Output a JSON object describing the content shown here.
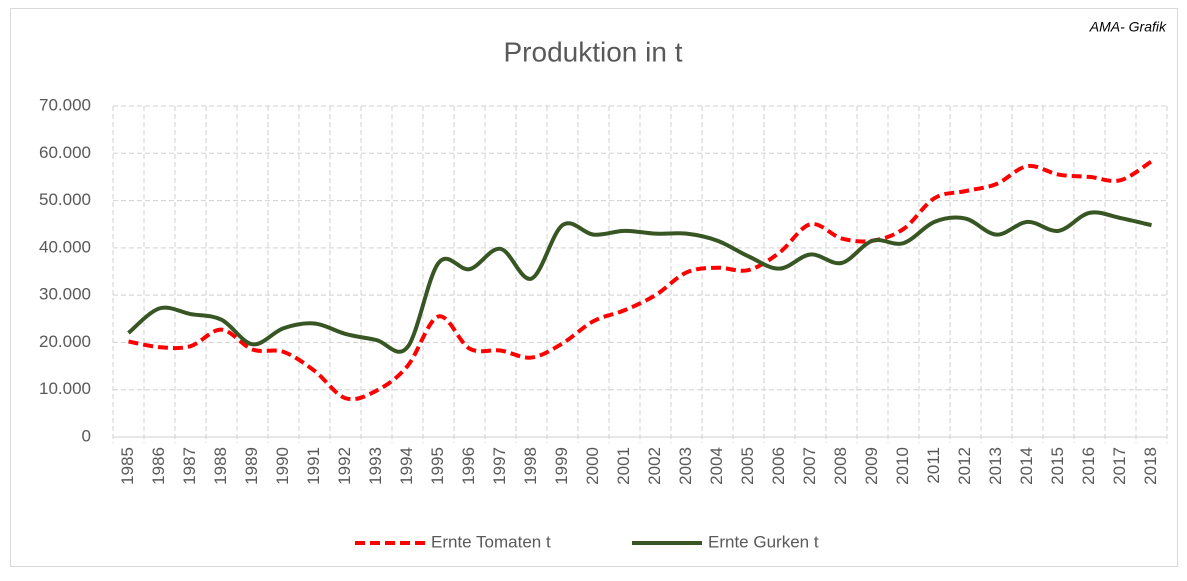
{
  "chart_data": {
    "type": "line",
    "title": "Produktion in t",
    "annotation": "AMA- Grafik",
    "categories": [
      "1985",
      "1986",
      "1987",
      "1988",
      "1989",
      "1990",
      "1991",
      "1992",
      "1993",
      "1994",
      "1995",
      "1996",
      "1997",
      "1998",
      "1999",
      "2000",
      "2001",
      "2002",
      "2003",
      "2004",
      "2005",
      "2006",
      "2007",
      "2008",
      "2009",
      "2010",
      "2011",
      "2012",
      "2013",
      "2014",
      "2015",
      "2016",
      "2017",
      "2018"
    ],
    "series": [
      {
        "name": "Ernte Tomaten  t",
        "color": "#ff0000",
        "dash": true,
        "values": [
          20200,
          19000,
          19200,
          22700,
          18500,
          18000,
          14000,
          8200,
          9800,
          15000,
          25500,
          18700,
          18300,
          16800,
          19800,
          24500,
          26800,
          30000,
          34800,
          35800,
          35300,
          39000,
          45000,
          42000,
          41500,
          44000,
          50500,
          52000,
          53500,
          57300,
          55500,
          55000,
          54300,
          58300
        ]
      },
      {
        "name": "Ernte Gurken t",
        "color": "#375623",
        "dash": false,
        "values": [
          22000,
          27200,
          26000,
          24800,
          19600,
          23000,
          24000,
          21800,
          20500,
          19000,
          36800,
          35500,
          39800,
          33500,
          44800,
          42800,
          43600,
          43000,
          43000,
          41500,
          38200,
          35600,
          38600,
          36800,
          41500,
          41000,
          45500,
          46200,
          42800,
          45500,
          43600,
          47400,
          46300,
          44800
        ]
      }
    ],
    "ylim": [
      0,
      70000
    ],
    "yticks": [
      0,
      {
        "value": 10000,
        "label": "10.000"
      },
      {
        "value": 20000,
        "label": "20.000"
      },
      {
        "value": 30000,
        "label": "30.000"
      },
      {
        "value": 40000,
        "label": "40.000"
      },
      {
        "value": 50000,
        "label": "50.000"
      },
      {
        "value": 60000,
        "label": "60.000"
      },
      {
        "value": 70000,
        "label": "70.000"
      }
    ],
    "grid": true,
    "legend": "bottom"
  }
}
